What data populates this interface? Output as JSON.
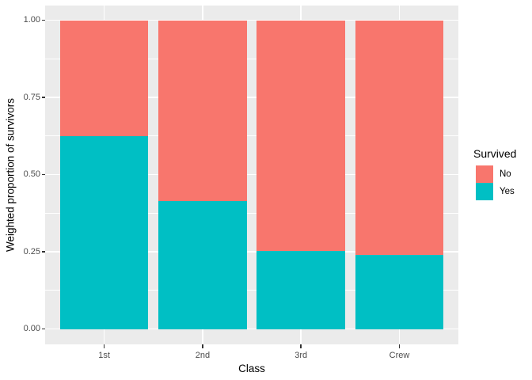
{
  "chart_data": {
    "type": "bar",
    "stacked": true,
    "title": "",
    "xlabel": "Class",
    "ylabel": "Weighted proportion of survivors",
    "categories": [
      "1st",
      "2nd",
      "3rd",
      "Crew"
    ],
    "series": [
      {
        "name": "No",
        "color": "#F8766D",
        "values": [
          0.375,
          0.586,
          0.748,
          0.76
        ]
      },
      {
        "name": "Yes",
        "color": "#00BFC4",
        "values": [
          0.625,
          0.414,
          0.252,
          0.24
        ]
      }
    ],
    "ylim": [
      0,
      1
    ],
    "yticks": [
      {
        "value": 1.0,
        "label": "1.00"
      },
      {
        "value": 0.75,
        "label": "0.75"
      },
      {
        "value": 0.5,
        "label": "0.50"
      },
      {
        "value": 0.25,
        "label": "0.25"
      },
      {
        "value": 0.0,
        "label": "0.00"
      }
    ],
    "minor_gridlines": [
      0.875,
      0.625,
      0.375,
      0.125
    ],
    "legend": {
      "title": "Survived",
      "position": "right",
      "entries": [
        "No",
        "Yes"
      ]
    },
    "colors": {
      "panel_background": "#EBEBEB",
      "gridline": "#FFFFFF",
      "axis_text": "#4D4D4D",
      "axis_title": "#000000",
      "tick_mark": "#333333"
    },
    "grid": true
  }
}
